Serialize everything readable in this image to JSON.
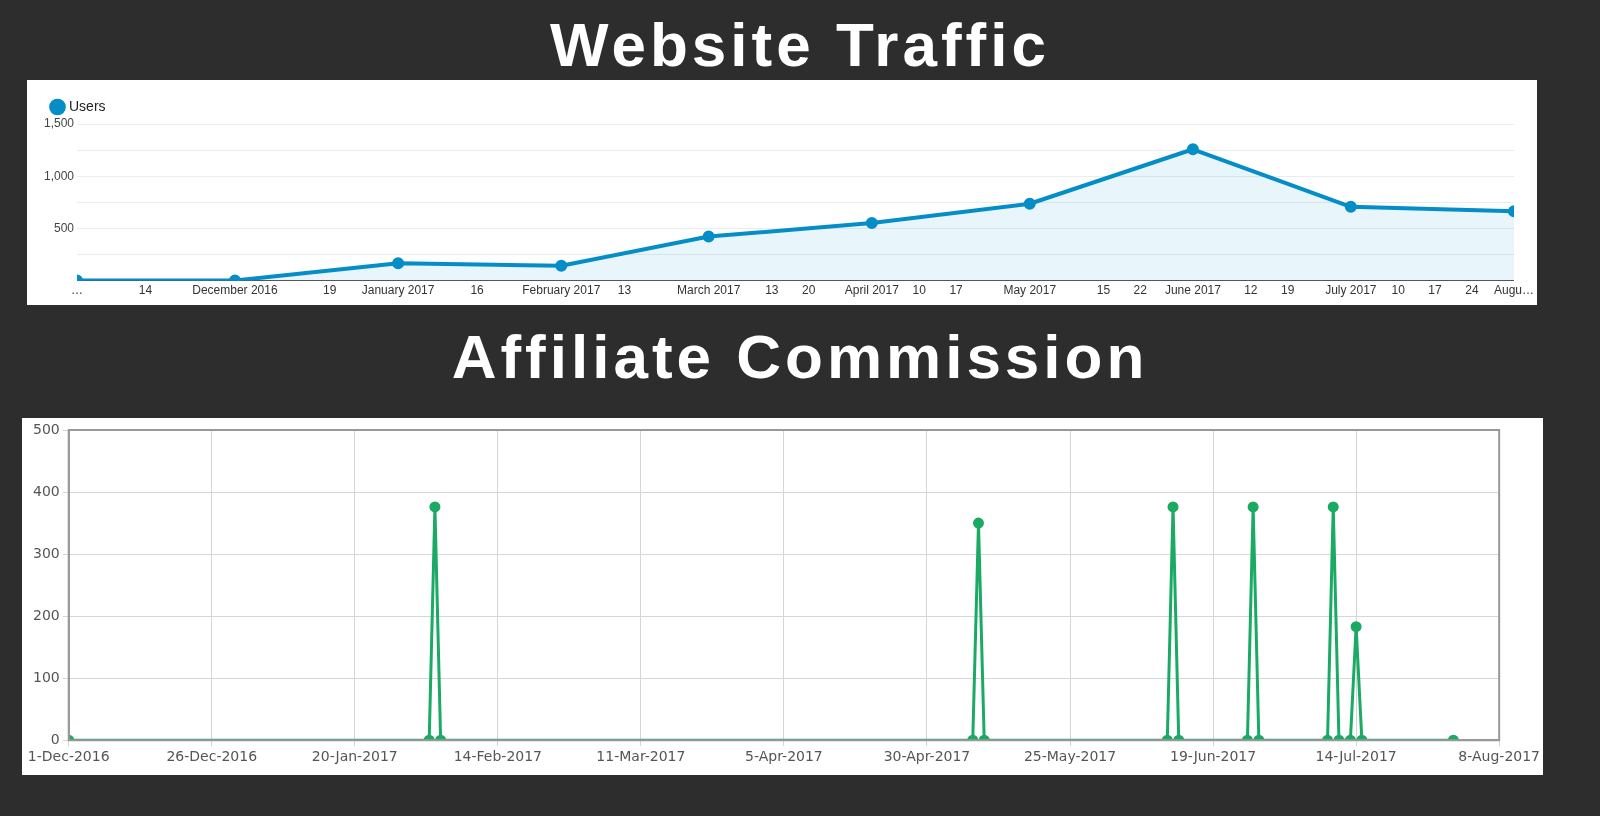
{
  "chart_data": [
    {
      "type": "area",
      "title": "Website Traffic",
      "x": [
        "2016-11-01",
        "2016-12-01",
        "2017-01-01",
        "2017-02-01",
        "2017-03-01",
        "2017-04-01",
        "2017-05-01",
        "2017-06-01",
        "2017-07-01",
        "2017-08-01"
      ],
      "series": [
        {
          "name": "Users",
          "color": "#058dc7",
          "values": [
            0,
            0,
            166,
            142,
            422,
            551,
            736,
            1258,
            707,
            665
          ]
        }
      ],
      "xlim": [
        "2016-11-01",
        "2017-08-01"
      ],
      "xticks": [
        {
          "value": "2016-11-01",
          "label": "…"
        },
        {
          "value": "2016-11-14",
          "label": "14"
        },
        {
          "value": "2016-12-01",
          "label": "December 2016"
        },
        {
          "value": "2016-12-19",
          "label": "19"
        },
        {
          "value": "2017-01-01",
          "label": "January 2017"
        },
        {
          "value": "2017-01-16",
          "label": "16"
        },
        {
          "value": "2017-02-01",
          "label": "February 2017"
        },
        {
          "value": "2017-02-13",
          "label": "13"
        },
        {
          "value": "2017-03-01",
          "label": "March 2017"
        },
        {
          "value": "2017-03-13",
          "label": "13"
        },
        {
          "value": "2017-03-20",
          "label": "20"
        },
        {
          "value": "2017-04-01",
          "label": "April 2017"
        },
        {
          "value": "2017-04-10",
          "label": "10"
        },
        {
          "value": "2017-04-17",
          "label": "17"
        },
        {
          "value": "2017-05-01",
          "label": "May 2017"
        },
        {
          "value": "2017-05-15",
          "label": "15"
        },
        {
          "value": "2017-05-22",
          "label": "22"
        },
        {
          "value": "2017-06-01",
          "label": "June 2017"
        },
        {
          "value": "2017-06-12",
          "label": "12"
        },
        {
          "value": "2017-06-19",
          "label": "19"
        },
        {
          "value": "2017-07-01",
          "label": "July 2017"
        },
        {
          "value": "2017-07-10",
          "label": "10"
        },
        {
          "value": "2017-07-17",
          "label": "17"
        },
        {
          "value": "2017-07-24",
          "label": "24"
        },
        {
          "value": "2017-08-01",
          "label": "Augu…"
        }
      ],
      "ylim": [
        0,
        1500
      ],
      "yticks": [
        {
          "value": 0,
          "label": null
        },
        {
          "value": 250,
          "label": null
        },
        {
          "value": 500,
          "label": "500"
        },
        {
          "value": 750,
          "label": null
        },
        {
          "value": 1000,
          "label": "1,000"
        },
        {
          "value": 1250,
          "label": null
        },
        {
          "value": 1500,
          "label": "1,500"
        }
      ],
      "grid": "y",
      "legend": "top left",
      "marker": "circle"
    },
    {
      "type": "line",
      "title": "Affiliate Commission",
      "x": [
        "2016-12-01",
        "2017-02-02",
        "2017-02-03",
        "2017-02-04",
        "2017-05-08",
        "2017-05-09",
        "2017-05-10",
        "2017-06-11",
        "2017-06-12",
        "2017-06-13",
        "2017-06-25",
        "2017-06-26",
        "2017-06-27",
        "2017-07-09",
        "2017-07-10",
        "2017-07-11",
        "2017-07-13",
        "2017-07-14",
        "2017-07-15",
        "2017-07-31"
      ],
      "series": [
        {
          "color": "#1aaa64",
          "values": [
            0,
            0,
            376,
            0,
            0,
            350,
            0,
            0,
            376,
            0,
            0,
            376,
            0,
            0,
            376,
            0,
            0,
            183,
            0,
            0
          ]
        }
      ],
      "xlim": [
        "2016-12-01",
        "2017-08-08"
      ],
      "xticks": [
        {
          "value": "2016-12-01",
          "label": "1-Dec-2016"
        },
        {
          "value": "2016-12-26",
          "label": "26-Dec-2016"
        },
        {
          "value": "2017-01-20",
          "label": "20-Jan-2017"
        },
        {
          "value": "2017-02-14",
          "label": "14-Feb-2017"
        },
        {
          "value": "2017-03-11",
          "label": "11-Mar-2017"
        },
        {
          "value": "2017-04-05",
          "label": "5-Apr-2017"
        },
        {
          "value": "2017-04-30",
          "label": "30-Apr-2017"
        },
        {
          "value": "2017-05-25",
          "label": "25-May-2017"
        },
        {
          "value": "2017-06-19",
          "label": "19-Jun-2017"
        },
        {
          "value": "2017-07-14",
          "label": "14-Jul-2017"
        },
        {
          "value": "2017-08-08",
          "label": "8-Aug-2017"
        }
      ],
      "ylim": [
        0,
        500
      ],
      "yticks": [
        0,
        100,
        200,
        300,
        400,
        500
      ],
      "grid": true,
      "marker": "circle"
    }
  ]
}
